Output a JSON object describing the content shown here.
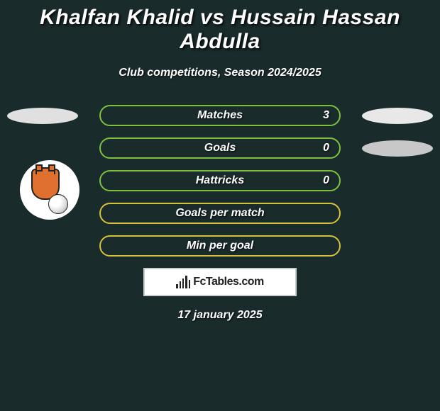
{
  "header": {
    "title": "Khalfan Khalid vs Hussain Hassan Abdulla",
    "subtitle": "Club competitions, Season 2024/2025"
  },
  "colors": {
    "background": "#1a2b2b",
    "green_border": "#7fbf3f",
    "yellow_border": "#d4c23a",
    "oval_light": "#e0e0e0",
    "oval_gray": "#c8c8c8",
    "text": "#ffffff"
  },
  "stats": [
    {
      "label": "Matches",
      "value": "3",
      "style": "green"
    },
    {
      "label": "Goals",
      "value": "0",
      "style": "green"
    },
    {
      "label": "Hattricks",
      "value": "0",
      "style": "green"
    },
    {
      "label": "Goals per match",
      "value": "",
      "style": "yellow"
    },
    {
      "label": "Min per goal",
      "value": "",
      "style": "yellow"
    }
  ],
  "branding": {
    "site_name": "FcTables.com"
  },
  "footer": {
    "date": "17 january 2025"
  },
  "badge": {
    "club_hint": "Ajman",
    "primary_color": "#e07030",
    "secondary_color": "#222222",
    "ball_color": "#ffffff"
  }
}
